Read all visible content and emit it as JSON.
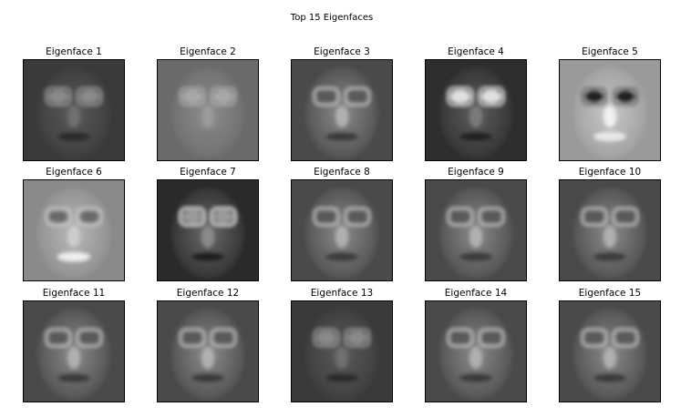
{
  "figure": {
    "title": "Top 15 Eigenfaces"
  },
  "panels": [
    {
      "title": "Eigenface 1",
      "tone": "dark",
      "icon": "eigenface-image"
    },
    {
      "title": "Eigenface 2",
      "tone": "soft-gray",
      "icon": "eigenface-image"
    },
    {
      "title": "Eigenface 3",
      "tone": "gray",
      "icon": "eigenface-image"
    },
    {
      "title": "Eigenface 4",
      "tone": "dark-eyes-bright",
      "icon": "eigenface-image"
    },
    {
      "title": "Eigenface 5",
      "tone": "light-dark-eyes",
      "icon": "eigenface-image"
    },
    {
      "title": "Eigenface 6",
      "tone": "light",
      "icon": "eigenface-image"
    },
    {
      "title": "Eigenface 7",
      "tone": "dark-glasses",
      "icon": "eigenface-image"
    },
    {
      "title": "Eigenface 8",
      "tone": "gray",
      "icon": "eigenface-image"
    },
    {
      "title": "Eigenface 9",
      "tone": "gray",
      "icon": "eigenface-image"
    },
    {
      "title": "Eigenface 10",
      "tone": "gray",
      "icon": "eigenface-image"
    },
    {
      "title": "Eigenface 11",
      "tone": "gray",
      "icon": "eigenface-image"
    },
    {
      "title": "Eigenface 12",
      "tone": "gray",
      "icon": "eigenface-image"
    },
    {
      "title": "Eigenface 13",
      "tone": "dark",
      "icon": "eigenface-image"
    },
    {
      "title": "Eigenface 14",
      "tone": "gray",
      "icon": "eigenface-image"
    },
    {
      "title": "Eigenface 15",
      "tone": "gray",
      "icon": "eigenface-image"
    }
  ]
}
